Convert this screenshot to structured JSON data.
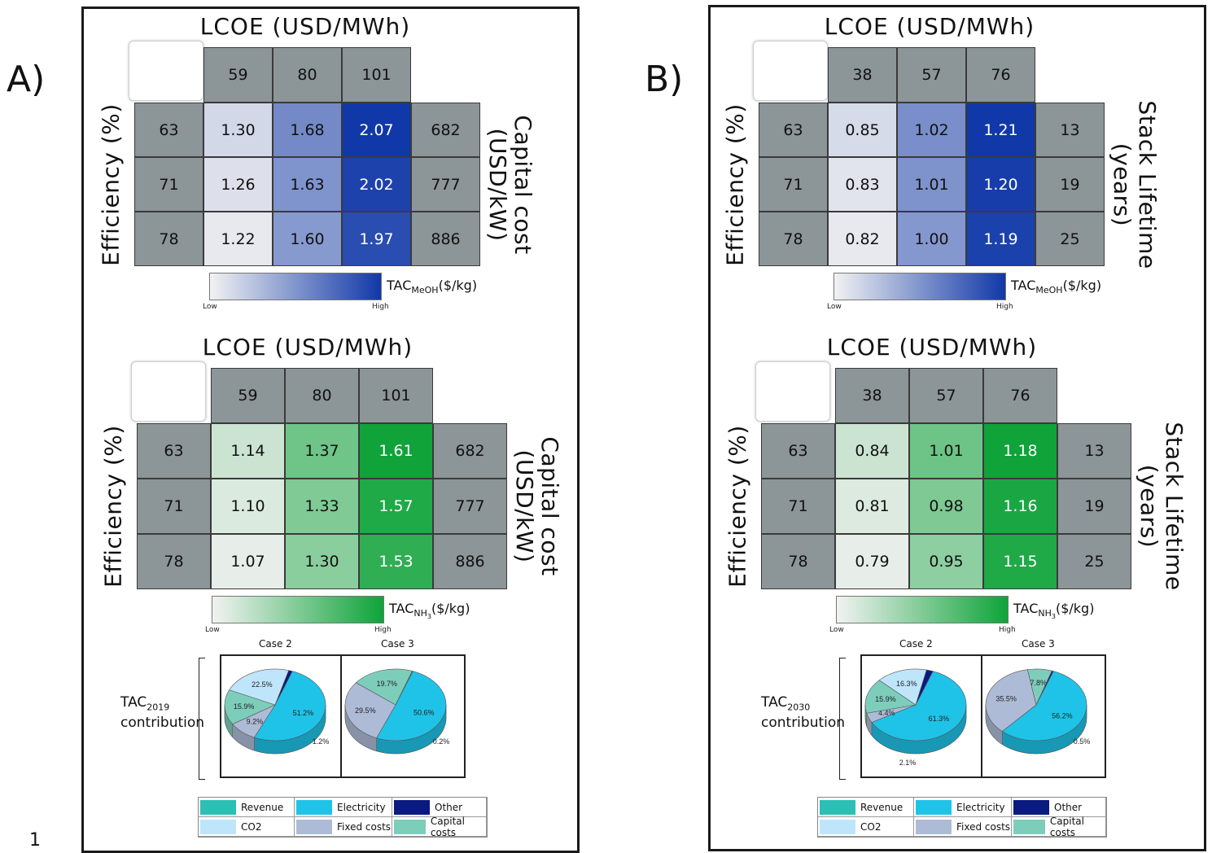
{
  "figure_footnote": "1",
  "chart_data": [
    {
      "panel_label": "A)",
      "type": "heatmap",
      "title": "LCOE (USD/MWh)",
      "x": [
        "59",
        "80",
        "101"
      ],
      "y": [
        "63",
        "71",
        "78"
      ],
      "ylabel": "Efficiency (%)",
      "right_labels": [
        "682",
        "777",
        "886"
      ],
      "right_title": "Capital cost (USD/kW)",
      "right_title_lines": [
        "Capital cost",
        "(USD/kW)"
      ],
      "values": [
        [
          "1.30",
          "1.68",
          "2.07"
        ],
        [
          "1.26",
          "1.63",
          "2.02"
        ],
        [
          "1.22",
          "1.60",
          "1.97"
        ]
      ],
      "colorbar": {
        "label_main": "TAC",
        "label_sub": "MeOH",
        "label_unit": "($/kg)",
        "low": "Low",
        "high": "High",
        "colors": [
          "#f2f2f2",
          "#1038a8"
        ]
      }
    },
    {
      "panel_label": "A)",
      "type": "heatmap",
      "title": "LCOE (USD/MWh)",
      "x": [
        "59",
        "80",
        "101"
      ],
      "y": [
        "63",
        "71",
        "78"
      ],
      "ylabel": "Efficiency (%)",
      "right_labels": [
        "682",
        "777",
        "886"
      ],
      "right_title": "Capital cost (USD/kW)",
      "right_title_lines": [
        "Capital cost",
        "(USD/kW)"
      ],
      "values": [
        [
          "1.14",
          "1.37",
          "1.61"
        ],
        [
          "1.10",
          "1.33",
          "1.57"
        ],
        [
          "1.07",
          "1.30",
          "1.53"
        ]
      ],
      "colorbar": {
        "label_main": "TAC",
        "label_sub": "NH",
        "label_sub2": "3",
        "label_unit": "($/kg)",
        "low": "Low",
        "high": "High",
        "colors": [
          "#f2f2f2",
          "#0fa33a"
        ]
      }
    },
    {
      "panel_label": "A)",
      "type": "pie",
      "group_label_main": "TAC",
      "group_label_sub": "2019",
      "group_label_line2": "contribution",
      "pies": [
        {
          "title": "Case 2",
          "slices": [
            {
              "name": "Electricity",
              "value": 51.2,
              "label": "51.2%"
            },
            {
              "name": "Fixed costs",
              "value": 9.2,
              "label": "9.2%"
            },
            {
              "name": "Capital costs",
              "value": 15.9,
              "label": "15.9%"
            },
            {
              "name": "CO2",
              "value": 22.5,
              "label": "22.5%"
            },
            {
              "name": "Other",
              "value": 1.2,
              "label": "1.2%"
            }
          ]
        },
        {
          "title": "Case 3",
          "slices": [
            {
              "name": "Electricity",
              "value": 50.6,
              "label": "50.6%"
            },
            {
              "name": "Fixed costs",
              "value": 29.5,
              "label": "29.5%"
            },
            {
              "name": "Capital costs",
              "value": 19.7,
              "label": "19.7%"
            },
            {
              "name": "Other",
              "value": 0.2,
              "label": "0.2%"
            }
          ]
        }
      ]
    },
    {
      "panel_label": "B)",
      "type": "heatmap",
      "title": "LCOE (USD/MWh)",
      "x": [
        "38",
        "57",
        "76"
      ],
      "y": [
        "63",
        "71",
        "78"
      ],
      "ylabel": "Efficiency (%)",
      "right_labels": [
        "13",
        "19",
        "25"
      ],
      "right_title": "Stack Lifetime (years)",
      "right_title_lines": [
        "Stack Lifetime",
        "(years)"
      ],
      "values": [
        [
          "0.85",
          "1.02",
          "1.21"
        ],
        [
          "0.83",
          "1.01",
          "1.20"
        ],
        [
          "0.82",
          "1.00",
          "1.19"
        ]
      ],
      "colorbar": {
        "label_main": "TAC",
        "label_sub": "MeOH",
        "label_unit": "($/kg)",
        "low": "Low",
        "high": "High",
        "colors": [
          "#f2f2f2",
          "#1038a8"
        ]
      }
    },
    {
      "panel_label": "B)",
      "type": "heatmap",
      "title": "LCOE (USD/MWh)",
      "x": [
        "38",
        "57",
        "76"
      ],
      "y": [
        "63",
        "71",
        "78"
      ],
      "ylabel": "Efficiency (%)",
      "right_labels": [
        "13",
        "19",
        "25"
      ],
      "right_title": "Stack Lifetime (years)",
      "right_title_lines": [
        "Stack Lifetime",
        "(years)"
      ],
      "values": [
        [
          "0.84",
          "1.01",
          "1.18"
        ],
        [
          "0.81",
          "0.98",
          "1.16"
        ],
        [
          "0.79",
          "0.95",
          "1.15"
        ]
      ],
      "colorbar": {
        "label_main": "TAC",
        "label_sub": "NH",
        "label_sub2": "3",
        "label_unit": "($/kg)",
        "low": "Low",
        "high": "High",
        "colors": [
          "#f2f2f2",
          "#0fa33a"
        ]
      }
    },
    {
      "panel_label": "B)",
      "type": "pie",
      "group_label_main": "TAC",
      "group_label_sub": "2030",
      "group_label_line2": "contribution",
      "pies": [
        {
          "title": "Case 2",
          "slices": [
            {
              "name": "Electricity",
              "value": 61.3,
              "label": "61.3%"
            },
            {
              "name": "Fixed costs",
              "value": 4.4,
              "label": "4.4%"
            },
            {
              "name": "Capital costs",
              "value": 15.9,
              "label": "15.9%"
            },
            {
              "name": "CO2",
              "value": 16.3,
              "label": "16.3%"
            },
            {
              "name": "Other",
              "value": 2.1,
              "label": "2.1%"
            }
          ]
        },
        {
          "title": "Case 3",
          "slices": [
            {
              "name": "Electricity",
              "value": 56.2,
              "label": "56.2%"
            },
            {
              "name": "Fixed costs",
              "value": 35.5,
              "label": "35.5%"
            },
            {
              "name": "Capital costs",
              "value": 7.8,
              "label": "7.8%"
            },
            {
              "name": "Other",
              "value": 0.5,
              "label": "0.5%"
            }
          ]
        }
      ]
    }
  ],
  "legend": [
    {
      "name": "Revenue",
      "color": "#2cc0b5"
    },
    {
      "name": "Electricity",
      "color": "#1fc3e8"
    },
    {
      "name": "Other",
      "color": "#0a1a80"
    },
    {
      "name": "CO2",
      "color": "#bfe5fb"
    },
    {
      "name": "Fixed costs",
      "color": "#aebbd6"
    },
    {
      "name": "Capital costs",
      "color": "#7dcdbb"
    }
  ]
}
